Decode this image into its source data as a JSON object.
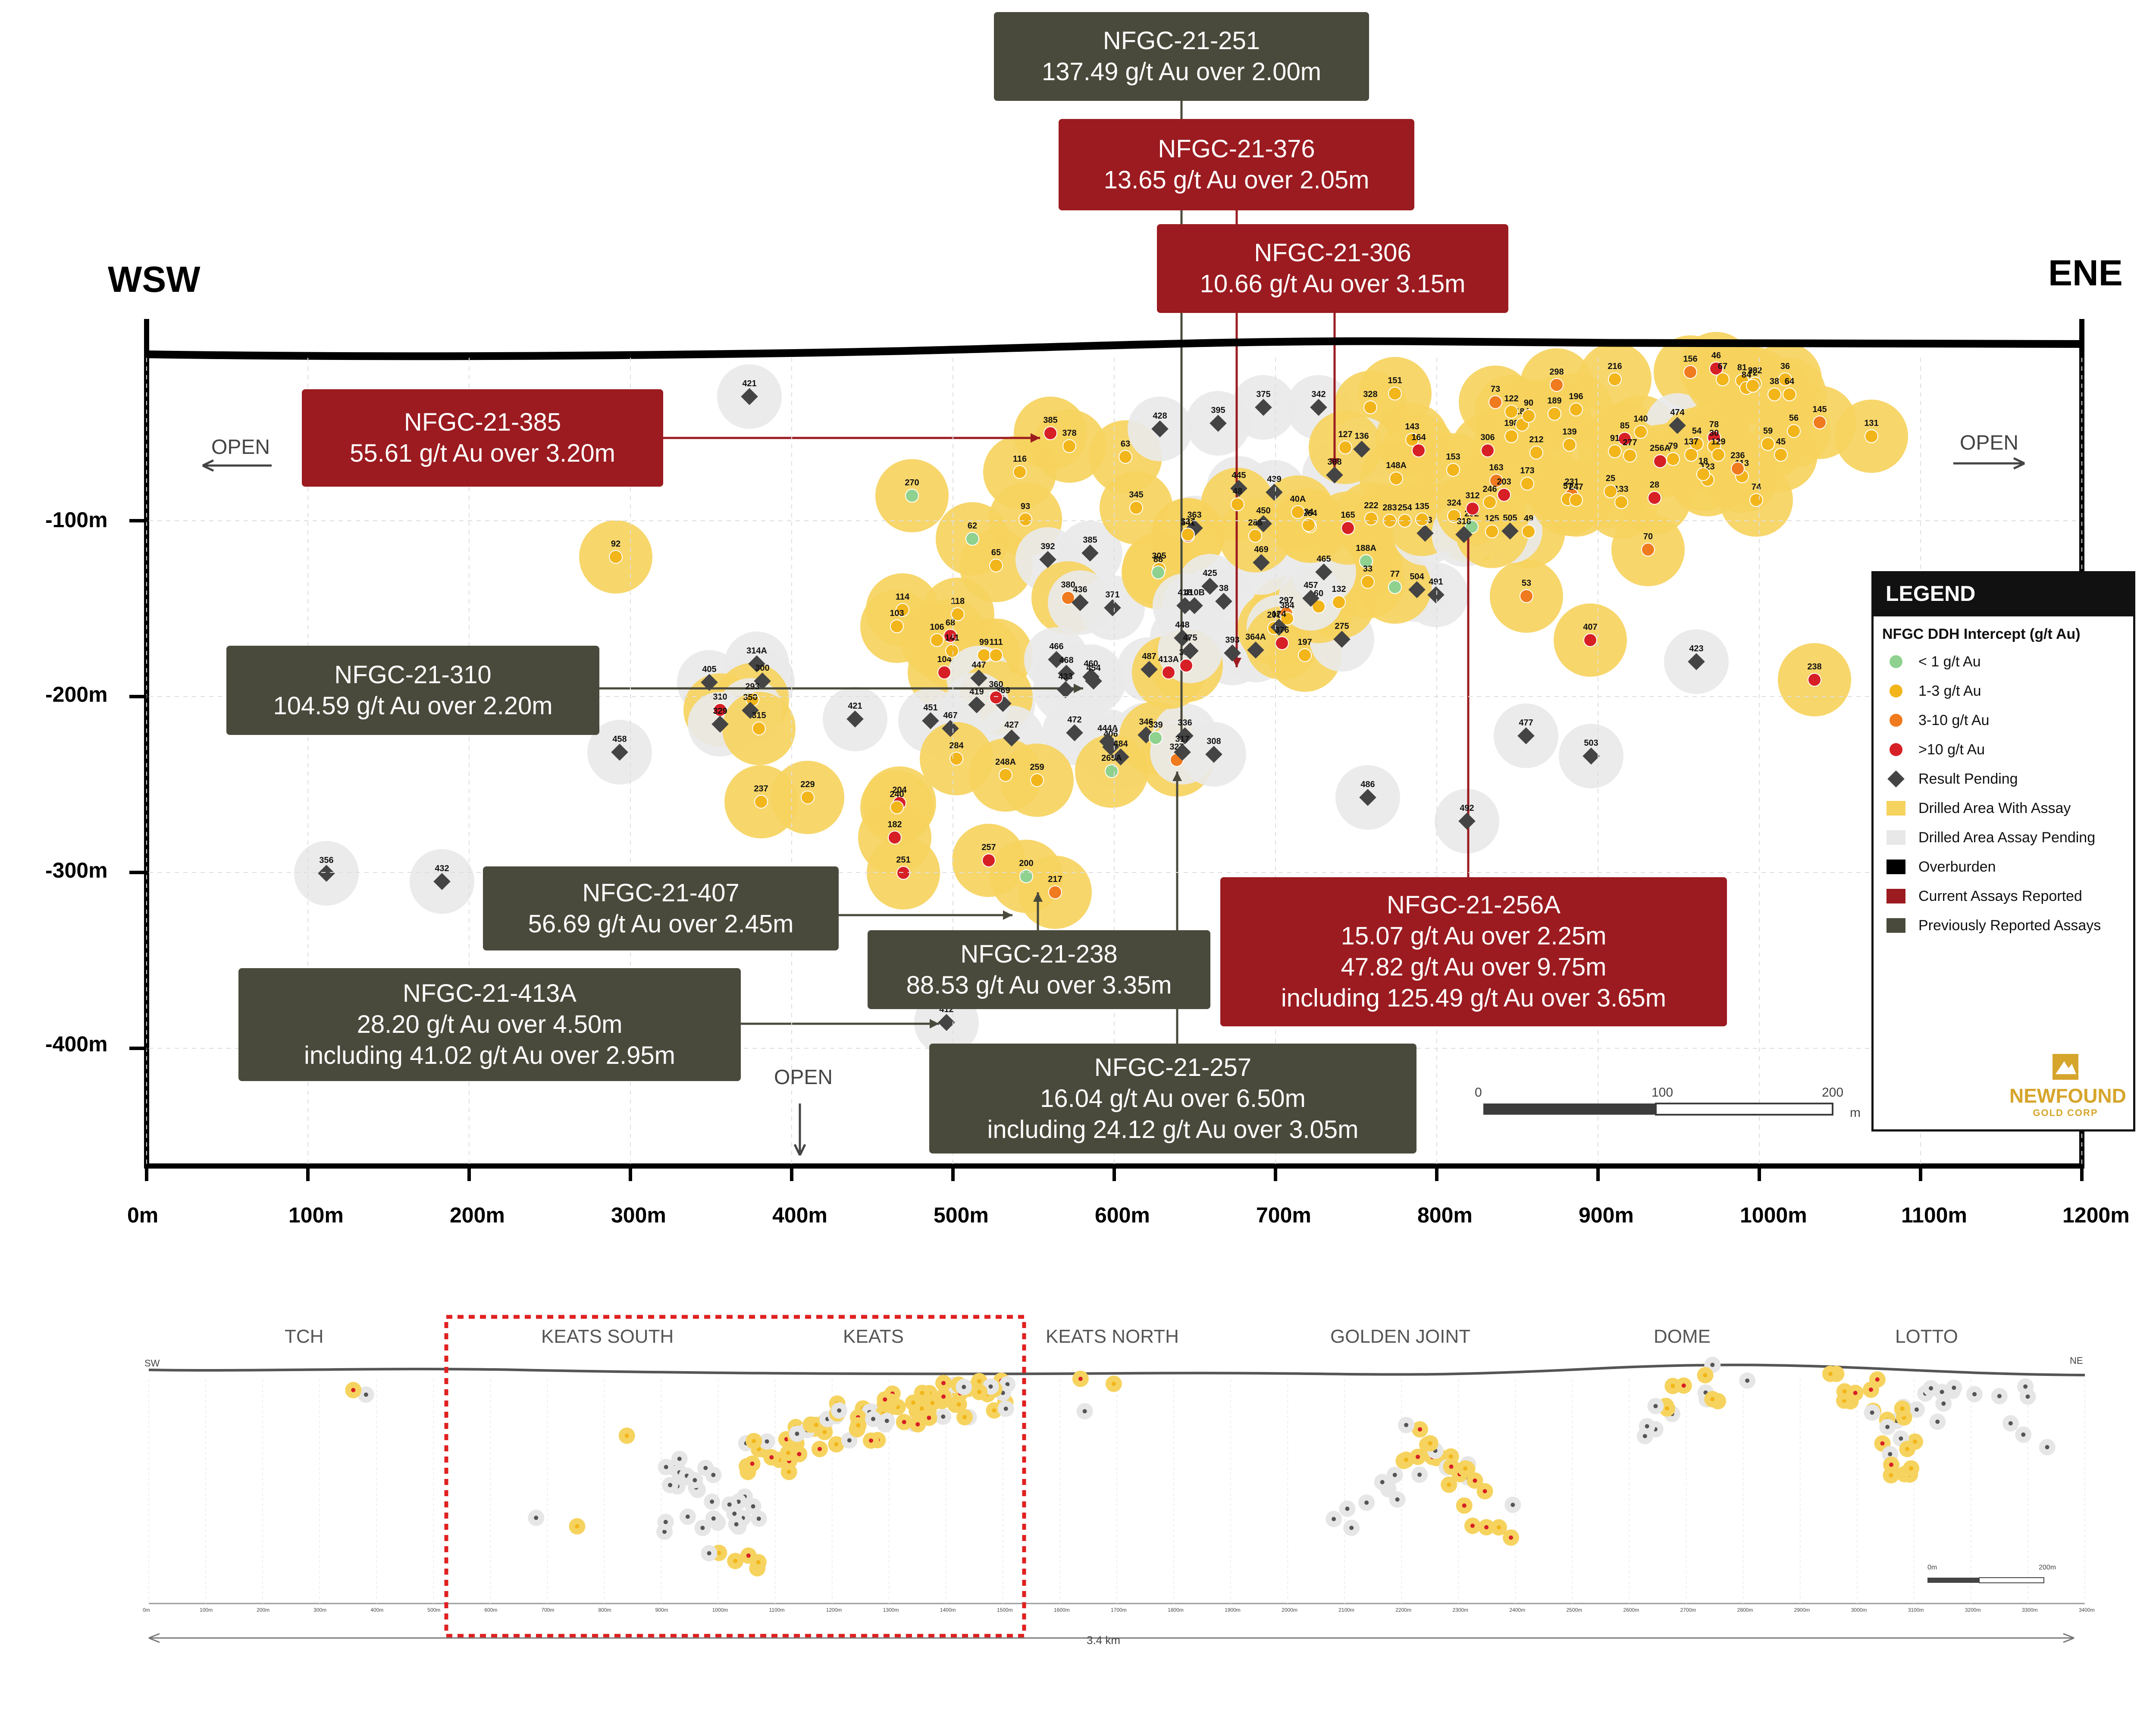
{
  "title_left": "WSW",
  "title_right": "ENE",
  "open_label": "OPEN",
  "y_axis_ticks": [
    "-100m",
    "-200m",
    "-300m",
    "-400m"
  ],
  "x_axis_ticks": [
    "0m",
    "100m",
    "200m",
    "300m",
    "400m",
    "500m",
    "600m",
    "700m",
    "800m",
    "900m",
    "1000m",
    "1100m",
    "1200m"
  ],
  "callouts": [
    {
      "id": "c251",
      "kind": "dark",
      "lines": [
        "NFGC-21-251",
        "137.49 g/t Au over 2.00m"
      ]
    },
    {
      "id": "c376",
      "kind": "red",
      "lines": [
        "NFGC-21-376",
        "13.65 g/t Au over 2.05m"
      ]
    },
    {
      "id": "c306",
      "kind": "red",
      "lines": [
        "NFGC-21-306",
        "10.66 g/t Au over 3.15m"
      ]
    },
    {
      "id": "c385",
      "kind": "red",
      "lines": [
        "NFGC-21-385",
        "55.61 g/t Au over 3.20m"
      ]
    },
    {
      "id": "c310",
      "kind": "dark",
      "lines": [
        "NFGC-21-310",
        "104.59 g/t Au over 2.20m"
      ]
    },
    {
      "id": "c407",
      "kind": "dark",
      "lines": [
        "NFGC-21-407",
        "56.69 g/t Au over 2.45m"
      ]
    },
    {
      "id": "c238",
      "kind": "dark",
      "lines": [
        "NFGC-21-238",
        "88.53 g/t Au over 3.35m"
      ]
    },
    {
      "id": "c413",
      "kind": "dark",
      "lines": [
        "NFGC-21-413A",
        "28.20 g/t Au over 4.50m",
        "including 41.02 g/t Au over 2.95m"
      ]
    },
    {
      "id": "c257",
      "kind": "dark",
      "lines": [
        "NFGC-21-257",
        "16.04 g/t Au over 6.50m",
        "including 24.12 g/t Au over 3.05m"
      ]
    },
    {
      "id": "c256",
      "kind": "red",
      "lines": [
        "NFGC-21-256A",
        "15.07 g/t Au over 2.25m",
        "47.82 g/t Au over 9.75m",
        "including 125.49 g/t Au over 3.65m"
      ]
    }
  ],
  "holes": [
    {
      "id": "421",
      "t": "p"
    },
    {
      "id": "92",
      "t": "y"
    },
    {
      "id": "270",
      "t": "g"
    },
    {
      "id": "385",
      "t": "r"
    },
    {
      "id": "378",
      "t": "y"
    },
    {
      "id": "63",
      "t": "y"
    },
    {
      "id": "428",
      "t": "p"
    },
    {
      "id": "395",
      "t": "p"
    },
    {
      "id": "375",
      "t": "p"
    },
    {
      "id": "342",
      "t": "p"
    },
    {
      "id": "328",
      "t": "y"
    },
    {
      "id": "151",
      "t": "y"
    },
    {
      "id": "73",
      "t": "o"
    },
    {
      "id": "298",
      "t": "o"
    },
    {
      "id": "216",
      "t": "y"
    },
    {
      "id": "156",
      "t": "o"
    },
    {
      "id": "81",
      "t": "y"
    },
    {
      "id": "145",
      "t": "o"
    },
    {
      "id": "131",
      "t": "y"
    },
    {
      "id": "116",
      "t": "y"
    },
    {
      "id": "93",
      "t": "y"
    },
    {
      "id": "62",
      "t": "g"
    },
    {
      "id": "65",
      "t": "y"
    },
    {
      "id": "392",
      "t": "p"
    },
    {
      "id": "385",
      "t": "p"
    },
    {
      "id": "380",
      "t": "o"
    },
    {
      "id": "436",
      "t": "p"
    },
    {
      "id": "371",
      "t": "p"
    },
    {
      "id": "345",
      "t": "y"
    },
    {
      "id": "363",
      "t": "p"
    },
    {
      "id": "341",
      "t": "r"
    },
    {
      "id": "337",
      "t": "y"
    },
    {
      "id": "305",
      "t": "y"
    },
    {
      "id": "88",
      "t": "g"
    },
    {
      "id": "425",
      "t": "p"
    },
    {
      "id": "418",
      "t": "p"
    },
    {
      "id": "410B",
      "t": "p"
    },
    {
      "id": "448",
      "t": "p"
    },
    {
      "id": "38",
      "t": "p"
    },
    {
      "id": "393",
      "t": "p"
    },
    {
      "id": "364A",
      "t": "p"
    },
    {
      "id": "208",
      "t": "y"
    },
    {
      "id": "297",
      "t": "o"
    },
    {
      "id": "384",
      "t": "y"
    },
    {
      "id": "174",
      "t": "p"
    },
    {
      "id": "376",
      "t": "r"
    },
    {
      "id": "197",
      "t": "y"
    },
    {
      "id": "275",
      "t": "p"
    },
    {
      "id": "388",
      "t": "p"
    },
    {
      "id": "136",
      "t": "p"
    },
    {
      "id": "148A",
      "t": "y"
    },
    {
      "id": "143",
      "t": "y"
    },
    {
      "id": "164",
      "t": "r"
    },
    {
      "id": "153",
      "t": "y"
    },
    {
      "id": "306",
      "t": "r"
    },
    {
      "id": "163",
      "t": "o"
    },
    {
      "id": "173",
      "t": "y"
    },
    {
      "id": "212",
      "t": "y"
    },
    {
      "id": "139",
      "t": "y"
    },
    {
      "id": "85",
      "t": "r"
    },
    {
      "id": "140",
      "t": "y"
    },
    {
      "id": "474",
      "t": "p"
    },
    {
      "id": "78",
      "t": "r"
    },
    {
      "id": "30",
      "t": "y"
    },
    {
      "id": "54",
      "t": "y"
    },
    {
      "id": "137",
      "t": "y"
    },
    {
      "id": "129",
      "t": "y"
    },
    {
      "id": "113",
      "t": "y"
    },
    {
      "id": "74",
      "t": "y"
    },
    {
      "id": "56",
      "t": "y"
    },
    {
      "id": "45",
      "t": "y"
    },
    {
      "id": "59",
      "t": "y"
    },
    {
      "id": "70",
      "t": "o"
    },
    {
      "id": "53",
      "t": "o"
    },
    {
      "id": "49",
      "t": "y"
    },
    {
      "id": "292",
      "t": "g"
    },
    {
      "id": "505",
      "t": "p"
    },
    {
      "id": "491",
      "t": "p"
    },
    {
      "id": "504",
      "t": "p"
    },
    {
      "id": "77",
      "t": "g"
    },
    {
      "id": "188A",
      "t": "g"
    },
    {
      "id": "33",
      "t": "y"
    },
    {
      "id": "132",
      "t": "y"
    },
    {
      "id": "60",
      "t": "y"
    },
    {
      "id": "114",
      "t": "y"
    },
    {
      "id": "103",
      "t": "y"
    },
    {
      "id": "106",
      "t": "y"
    },
    {
      "id": "99",
      "t": "y"
    },
    {
      "id": "104",
      "t": "r"
    },
    {
      "id": "118",
      "t": "y"
    },
    {
      "id": "68",
      "t": "r"
    },
    {
      "id": "141",
      "t": "y"
    },
    {
      "id": "111",
      "t": "y"
    },
    {
      "id": "466",
      "t": "p"
    },
    {
      "id": "460",
      "t": "p"
    },
    {
      "id": "454",
      "t": "p"
    },
    {
      "id": "447",
      "t": "p"
    },
    {
      "id": "468",
      "t": "p"
    },
    {
      "id": "369",
      "t": "p"
    },
    {
      "id": "360",
      "t": "r"
    },
    {
      "id": "433",
      "t": "p"
    },
    {
      "id": "419",
      "t": "p"
    },
    {
      "id": "405",
      "t": "p"
    },
    {
      "id": "314A",
      "t": "p"
    },
    {
      "id": "300",
      "t": "p"
    },
    {
      "id": "310",
      "t": "r"
    },
    {
      "id": "293",
      "t": "y"
    },
    {
      "id": "350",
      "t": "p"
    },
    {
      "id": "329",
      "t": "p"
    },
    {
      "id": "315",
      "t": "y"
    },
    {
      "id": "458",
      "t": "p"
    },
    {
      "id": "421",
      "t": "p"
    },
    {
      "id": "451",
      "t": "p"
    },
    {
      "id": "467",
      "t": "p"
    },
    {
      "id": "427",
      "t": "p"
    },
    {
      "id": "472",
      "t": "p"
    },
    {
      "id": "406",
      "t": "p"
    },
    {
      "id": "444A",
      "t": "p"
    },
    {
      "id": "484",
      "t": "p"
    },
    {
      "id": "346",
      "t": "p"
    },
    {
      "id": "339",
      "t": "g"
    },
    {
      "id": "336",
      "t": "p"
    },
    {
      "id": "327",
      "t": "o"
    },
    {
      "id": "317",
      "t": "p"
    },
    {
      "id": "308",
      "t": "p"
    },
    {
      "id": "265A",
      "t": "g"
    },
    {
      "id": "284",
      "t": "y"
    },
    {
      "id": "248A",
      "t": "y"
    },
    {
      "id": "259",
      "t": "y"
    },
    {
      "id": "237",
      "t": "y"
    },
    {
      "id": "229",
      "t": "y"
    },
    {
      "id": "204",
      "t": "r"
    },
    {
      "id": "240",
      "t": "y"
    },
    {
      "id": "182",
      "t": "r"
    },
    {
      "id": "251",
      "t": "r"
    },
    {
      "id": "257",
      "t": "r"
    },
    {
      "id": "200",
      "t": "g"
    },
    {
      "id": "217",
      "t": "o"
    },
    {
      "id": "356",
      "t": "p"
    },
    {
      "id": "432",
      "t": "p"
    },
    {
      "id": "412",
      "t": "p"
    },
    {
      "id": "486",
      "t": "p"
    },
    {
      "id": "492",
      "t": "p"
    },
    {
      "id": "477",
      "t": "p"
    },
    {
      "id": "503",
      "t": "p"
    },
    {
      "id": "423",
      "t": "p"
    },
    {
      "id": "407",
      "t": "r"
    },
    {
      "id": "238",
      "t": "r"
    },
    {
      "id": "487",
      "t": "p"
    },
    {
      "id": "387",
      "t": "r"
    },
    {
      "id": "413A",
      "t": "r"
    },
    {
      "id": "475",
      "t": "p"
    },
    {
      "id": "469",
      "t": "p"
    },
    {
      "id": "465",
      "t": "p"
    },
    {
      "id": "457",
      "t": "p"
    },
    {
      "id": "445",
      "t": "p"
    },
    {
      "id": "439",
      "t": "p"
    },
    {
      "id": "450",
      "t": "p"
    },
    {
      "id": "264",
      "t": "y"
    },
    {
      "id": "165",
      "t": "r"
    },
    {
      "id": "222",
      "t": "y"
    },
    {
      "id": "283",
      "t": "y"
    },
    {
      "id": "254",
      "t": "y"
    },
    {
      "id": "323",
      "t": "p"
    },
    {
      "id": "135",
      "t": "y"
    },
    {
      "id": "324",
      "t": "y"
    },
    {
      "id": "318",
      "t": "p"
    },
    {
      "id": "312",
      "t": "r"
    },
    {
      "id": "246",
      "t": "y"
    },
    {
      "id": "203",
      "t": "r"
    },
    {
      "id": "198",
      "t": "y"
    },
    {
      "id": "184",
      "t": "y"
    },
    {
      "id": "189",
      "t": "y"
    },
    {
      "id": "196",
      "t": "y"
    },
    {
      "id": "91",
      "t": "y"
    },
    {
      "id": "277",
      "t": "y"
    },
    {
      "id": "256A",
      "t": "r"
    },
    {
      "id": "79",
      "t": "y"
    },
    {
      "id": "123",
      "t": "y"
    },
    {
      "id": "236",
      "t": "o"
    },
    {
      "id": "231",
      "t": "o"
    },
    {
      "id": "57",
      "t": "y"
    },
    {
      "id": "247",
      "t": "y"
    },
    {
      "id": "133",
      "t": "y"
    },
    {
      "id": "28",
      "t": "r"
    },
    {
      "id": "25",
      "t": "y"
    },
    {
      "id": "18",
      "t": "y"
    },
    {
      "id": "36",
      "t": "y"
    },
    {
      "id": "38",
      "t": "y"
    },
    {
      "id": "84",
      "t": "y"
    },
    {
      "id": "282",
      "t": "y"
    },
    {
      "id": "46",
      "t": "r"
    },
    {
      "id": "67",
      "t": "y"
    },
    {
      "id": "72",
      "t": "y"
    },
    {
      "id": "64",
      "t": "y"
    },
    {
      "id": "40A",
      "t": "y"
    },
    {
      "id": "34",
      "t": "y"
    },
    {
      "id": "48",
      "t": "y"
    },
    {
      "id": "288",
      "t": "y"
    },
    {
      "id": "127",
      "t": "y"
    },
    {
      "id": "125",
      "t": "y"
    },
    {
      "id": "122",
      "t": "y"
    },
    {
      "id": "90",
      "t": "y"
    },
    {
      "id": "223",
      "t": "y"
    },
    {
      "id": "41",
      "t": "r"
    },
    {
      "id": "37",
      "t": "r"
    },
    {
      "id": "87",
      "t": "y"
    },
    {
      "id": "20",
      "t": "y"
    },
    {
      "id": "227",
      "t": "y"
    },
    {
      "id": "02",
      "t": "y"
    },
    {
      "id": "54",
      "t": "y"
    },
    {
      "id": "383",
      "t": "p"
    },
    {
      "id": "361",
      "t": "y"
    },
    {
      "id": "170",
      "t": "r"
    },
    {
      "id": "464",
      "t": "p"
    },
    {
      "id": "226",
      "t": "y"
    },
    {
      "id": "242",
      "t": "y"
    }
  ],
  "legend": {
    "title": "LEGEND",
    "subtitle": "NFGC DDH Intercept (g/t Au)",
    "items": [
      {
        "label": "< 1 g/t Au",
        "swatch": "dot",
        "color": "#8fd18f"
      },
      {
        "label": "1-3 g/t Au",
        "swatch": "dot",
        "color": "#f2b51a"
      },
      {
        "label": "3-10 g/t Au",
        "swatch": "dot",
        "color": "#f07a1e"
      },
      {
        "label": ">10 g/t Au",
        "swatch": "dot",
        "color": "#d71f26"
      },
      {
        "label": "Result Pending",
        "swatch": "diamond",
        "color": "#444444"
      },
      {
        "label": "Drilled Area With Assay",
        "swatch": "rect",
        "color": "#f6d35e"
      },
      {
        "label": "Drilled Area Assay Pending",
        "swatch": "rect",
        "color": "#e8e8e8"
      },
      {
        "label": "Overburden",
        "swatch": "rect",
        "color": "#000000"
      },
      {
        "label": "Current Assays Reported",
        "swatch": "rect",
        "color": "#9b1b20"
      },
      {
        "label": "Previously Reported Assays",
        "swatch": "rect",
        "color": "#4a4a3c"
      }
    ]
  },
  "scale_bar": {
    "ticks": [
      "0",
      "100",
      "200"
    ],
    "unit": "m"
  },
  "logo": {
    "name": "NEWFOUND",
    "sub": "GOLD CORP"
  },
  "overview": {
    "regions": [
      "TCH",
      "KEATS SOUTH",
      "KEATS",
      "KEATS NORTH",
      "GOLDEN JOINT",
      "DOME",
      "LOTTO"
    ],
    "sw_label": "SW",
    "ne_label": "NE",
    "distance_label": "3.4 km",
    "ticks": [
      "0m",
      "100m",
      "200m",
      "300m",
      "400m",
      "500m",
      "600m",
      "700m",
      "800m",
      "900m",
      "1000m",
      "1100m",
      "1200m",
      "1300m",
      "1400m",
      "1500m",
      "1600m",
      "1700m",
      "1800m",
      "1900m",
      "2000m",
      "2100m",
      "2200m",
      "2300m",
      "2400m",
      "2500m",
      "2600m",
      "2700m",
      "2800m",
      "2900m",
      "3000m",
      "3100m",
      "3200m",
      "3300m",
      "3400m"
    ],
    "scale_labels": [
      "0m",
      "200m"
    ]
  }
}
